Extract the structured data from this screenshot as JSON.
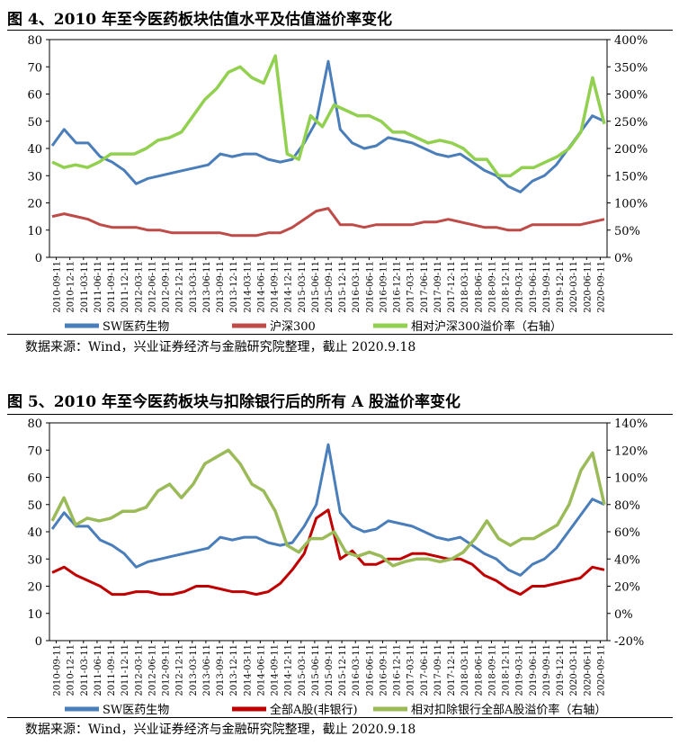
{
  "chart_data": [
    {
      "type": "line",
      "title": "图 4、2010 年至今医药板块估值水平及估值溢价率变化",
      "y_left": {
        "min": 0,
        "max": 80,
        "ticks": [
          "0",
          "10",
          "20",
          "30",
          "40",
          "50",
          "60",
          "70",
          "80"
        ]
      },
      "y_right": {
        "min": 0,
        "max": 400,
        "ticks": [
          "0%",
          "50%",
          "100%",
          "150%",
          "200%",
          "250%",
          "300%",
          "350%",
          "400%"
        ]
      },
      "x_ticks": [
        "2010-09-11",
        "2010-12-11",
        "2011-03-11",
        "2011-06-11",
        "2011-09-11",
        "2011-12-11",
        "2012-03-11",
        "2012-06-11",
        "2012-09-11",
        "2012-12-11",
        "2013-03-11",
        "2013-06-11",
        "2013-09-11",
        "2013-12-11",
        "2014-03-11",
        "2014-06-11",
        "2014-09-11",
        "2014-12-11",
        "2015-03-11",
        "2015-06-11",
        "2015-09-11",
        "2015-12-11",
        "2016-03-11",
        "2016-06-11",
        "2016-09-11",
        "2016-12-11",
        "2017-03-11",
        "2017-06-11",
        "2017-09-11",
        "2017-12-11",
        "2018-03-11",
        "2018-06-11",
        "2018-09-11",
        "2018-12-11",
        "2019-03-11",
        "2019-06-11",
        "2019-09-11",
        "2019-12-11",
        "2020-03-11",
        "2020-06-11",
        "2020-09-11"
      ],
      "grid": false,
      "legend_position": "bottom",
      "series": [
        {
          "name": "SW医药生物",
          "axis": "left",
          "color": "#4a7ebb",
          "values": [
            41,
            47,
            42,
            42,
            37,
            35,
            32,
            27,
            29,
            30,
            31,
            32,
            33,
            34,
            38,
            37,
            38,
            38,
            36,
            35,
            36,
            42,
            50,
            72,
            47,
            42,
            40,
            41,
            44,
            43,
            42,
            40,
            38,
            37,
            38,
            35,
            32,
            30,
            26,
            24,
            28,
            30,
            34,
            40,
            46,
            52,
            50
          ]
        },
        {
          "name": "沪深300",
          "axis": "left",
          "color": "#be4b48",
          "values": [
            15,
            16,
            15,
            14,
            12,
            11,
            11,
            11,
            10,
            10,
            9,
            9,
            9,
            9,
            9,
            8,
            8,
            8,
            9,
            9,
            11,
            14,
            17,
            18,
            12,
            12,
            11,
            12,
            12,
            12,
            12,
            13,
            13,
            14,
            13,
            12,
            11,
            11,
            10,
            10,
            12,
            12,
            12,
            12,
            12,
            13,
            14
          ]
        },
        {
          "name": "相对沪深300溢价率（右轴）",
          "axis": "right",
          "color": "#92d050",
          "values": [
            175,
            165,
            170,
            165,
            175,
            190,
            190,
            190,
            200,
            215,
            220,
            230,
            260,
            290,
            310,
            340,
            350,
            330,
            320,
            370,
            190,
            180,
            260,
            240,
            280,
            270,
            260,
            260,
            250,
            230,
            230,
            220,
            210,
            215,
            210,
            200,
            180,
            180,
            150,
            150,
            165,
            165,
            175,
            185,
            200,
            230,
            330,
            245
          ]
        }
      ]
    },
    {
      "type": "line",
      "title": "图 5、2010 年至今医药板块与扣除银行后的所有 A 股溢价率变化",
      "y_left": {
        "min": 0,
        "max": 80,
        "ticks": [
          "0",
          "10",
          "20",
          "30",
          "40",
          "50",
          "60",
          "70",
          "80"
        ]
      },
      "y_right": {
        "min": -20,
        "max": 140,
        "ticks": [
          "-20%",
          "0%",
          "20%",
          "40%",
          "60%",
          "80%",
          "100%",
          "120%",
          "140%"
        ]
      },
      "x_ticks": [
        "2010-09-11",
        "2010-12-11",
        "2011-03-11",
        "2011-06-11",
        "2011-09-11",
        "2011-12-11",
        "2012-03-11",
        "2012-06-11",
        "2012-09-11",
        "2012-12-11",
        "2013-03-11",
        "2013-06-11",
        "2013-09-11",
        "2013-12-11",
        "2014-03-11",
        "2014-06-11",
        "2014-09-11",
        "2014-12-11",
        "2015-03-11",
        "2015-06-11",
        "2015-09-11",
        "2015-12-11",
        "2016-03-11",
        "2016-06-11",
        "2016-09-11",
        "2016-12-11",
        "2017-03-11",
        "2017-06-11",
        "2017-09-11",
        "2017-12-11",
        "2018-03-11",
        "2018-06-11",
        "2018-09-11",
        "2018-12-11",
        "2019-03-11",
        "2019-06-11",
        "2019-09-11",
        "2019-12-11",
        "2020-03-11",
        "2020-06-11",
        "2020-09-11"
      ],
      "grid": false,
      "legend_position": "bottom",
      "series": [
        {
          "name": "SW医药生物",
          "axis": "left",
          "color": "#4a7ebb",
          "values": [
            41,
            47,
            42,
            42,
            37,
            35,
            32,
            27,
            29,
            30,
            31,
            32,
            33,
            34,
            38,
            37,
            38,
            38,
            36,
            35,
            36,
            42,
            50,
            72,
            47,
            42,
            40,
            41,
            44,
            43,
            42,
            40,
            38,
            37,
            38,
            35,
            32,
            30,
            26,
            24,
            28,
            30,
            34,
            40,
            46,
            52,
            50
          ]
        },
        {
          "name": "全部A股(非银行)",
          "axis": "left",
          "color": "#c00000",
          "values": [
            25,
            27,
            24,
            22,
            20,
            17,
            17,
            18,
            18,
            17,
            17,
            18,
            20,
            20,
            19,
            18,
            18,
            17,
            18,
            21,
            26,
            32,
            45,
            48,
            30,
            33,
            28,
            28,
            30,
            30,
            32,
            32,
            31,
            30,
            30,
            28,
            24,
            22,
            19,
            17,
            20,
            20,
            21,
            22,
            23,
            27,
            26
          ]
        },
        {
          "name": "相对扣除银行全部A股溢价率（右轴）",
          "axis": "right",
          "color": "#9bbb59",
          "values": [
            68,
            85,
            65,
            70,
            68,
            70,
            75,
            75,
            78,
            90,
            95,
            85,
            95,
            110,
            115,
            120,
            110,
            95,
            90,
            75,
            50,
            45,
            55,
            55,
            60,
            45,
            42,
            45,
            42,
            35,
            38,
            40,
            40,
            38,
            40,
            45,
            55,
            68,
            55,
            50,
            55,
            55,
            60,
            65,
            80,
            105,
            118,
            80
          ]
        }
      ]
    }
  ],
  "source_text": "数据来源：Wind，兴业证券经济与金融研究院整理，截止 2020.9.18"
}
